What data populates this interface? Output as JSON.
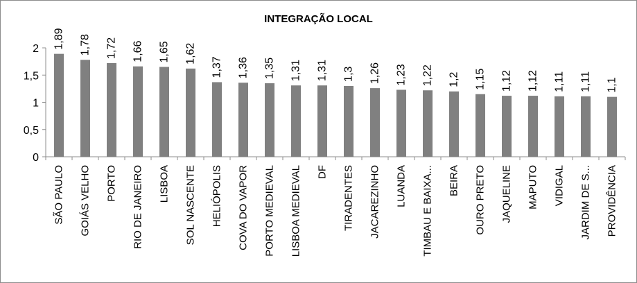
{
  "chart_data": {
    "type": "bar",
    "title": "INTEGRAÇÃO LOCAL",
    "xlabel": "",
    "ylabel": "",
    "ylim": [
      0,
      2
    ],
    "yticks": [
      0,
      0.5,
      1,
      1.5,
      2
    ],
    "ytick_labels": [
      "0",
      "0,5",
      "1",
      "1,5",
      "2"
    ],
    "grid": false,
    "legend": "none",
    "bar_color": "#808080",
    "categories": [
      "SÃO PAULO",
      "GOIÁS VELHO",
      "PORTO",
      "RIO DE JANEIRO",
      "LISBOA",
      "SOL NASCENTE",
      "HELIÓPOLIS",
      "COVA DO VAPOR",
      "PORTO MEDIEVAL",
      "LISBOA MEDIEVAL",
      "DF",
      "TIRADENTES",
      "JACAREZINHO",
      "LUANDA",
      "TIMBAU E BAIXA...",
      "BEIRA",
      "OURO PRETO",
      "JAQUELINE",
      "MAPUTO",
      "VIDIGAL",
      "JARDIM DE S...",
      "PROVIDÊNCIA"
    ],
    "values": [
      1.89,
      1.78,
      1.72,
      1.66,
      1.65,
      1.62,
      1.37,
      1.36,
      1.35,
      1.31,
      1.31,
      1.3,
      1.26,
      1.23,
      1.22,
      1.2,
      1.15,
      1.12,
      1.12,
      1.11,
      1.11,
      1.1
    ],
    "value_labels": [
      "1,89",
      "1,78",
      "1,72",
      "1,66",
      "1,65",
      "1,62",
      "1,37",
      "1,36",
      "1,35",
      "1,31",
      "1,31",
      "1,3",
      "1,26",
      "1,23",
      "1,22",
      "1,2",
      "1,15",
      "1,12",
      "1,12",
      "1,11",
      "1,11",
      "1,1"
    ]
  }
}
